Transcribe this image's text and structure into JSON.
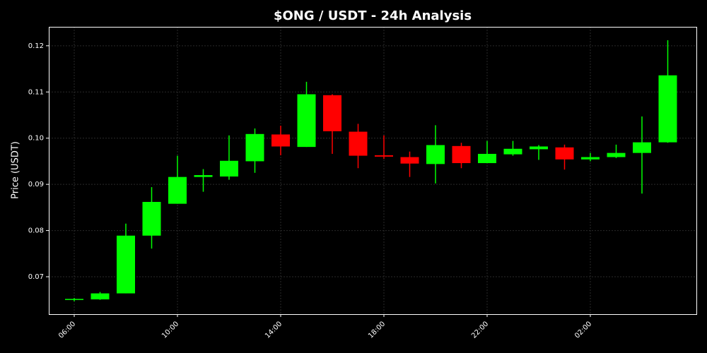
{
  "chart_data": {
    "type": "candlestick",
    "title": "$ONG / USDT - 24h Analysis",
    "ylabel": "Price (USDT)",
    "categories": [
      "06:00",
      null,
      null,
      null,
      "10:00",
      null,
      null,
      null,
      "14:00",
      null,
      null,
      null,
      "18:00",
      null,
      null,
      null,
      "22:00",
      null,
      null,
      null,
      "02:00",
      null,
      null,
      null
    ],
    "open": [
      0.065,
      0.0651,
      0.0664,
      0.0789,
      0.0858,
      0.0916,
      0.0917,
      0.095,
      0.1008,
      0.0981,
      0.1093,
      0.1014,
      0.0963,
      0.0959,
      0.0944,
      0.0983,
      0.0946,
      0.0965,
      0.0976,
      0.098,
      0.0954,
      0.0959,
      0.0968,
      0.0991
    ],
    "high": [
      0.0654,
      0.0667,
      0.0815,
      0.0894,
      0.0962,
      0.0933,
      0.1006,
      0.1021,
      0.1027,
      0.1122,
      0.1095,
      0.1031,
      0.1006,
      0.0971,
      0.1028,
      0.099,
      0.0994,
      0.0994,
      0.0985,
      0.0986,
      0.0968,
      0.0986,
      0.1047,
      0.1212
    ],
    "low": [
      0.0647,
      0.065,
      0.0664,
      0.0761,
      0.0858,
      0.0884,
      0.091,
      0.0925,
      0.0963,
      0.0981,
      0.0966,
      0.0935,
      0.0955,
      0.0916,
      0.0902,
      0.0935,
      0.0946,
      0.0962,
      0.0953,
      0.0932,
      0.095,
      0.0957,
      0.088,
      0.099
    ],
    "close": [
      0.0652,
      0.0664,
      0.0789,
      0.0862,
      0.0916,
      0.092,
      0.0951,
      0.1009,
      0.0982,
      0.1095,
      0.1015,
      0.0962,
      0.096,
      0.0945,
      0.0985,
      0.0946,
      0.0966,
      0.0977,
      0.0982,
      0.0954,
      0.0959,
      0.0968,
      0.0991,
      0.1136
    ],
    "up_color": "#00ff00",
    "down_color": "#ff0000",
    "ylim": [
      0.0619,
      0.1241
    ],
    "yticks": [
      0.07,
      0.08,
      0.09,
      {
        "value": 0.1,
        "label": "0.10"
      },
      0.11,
      0.12
    ],
    "grid": true
  }
}
